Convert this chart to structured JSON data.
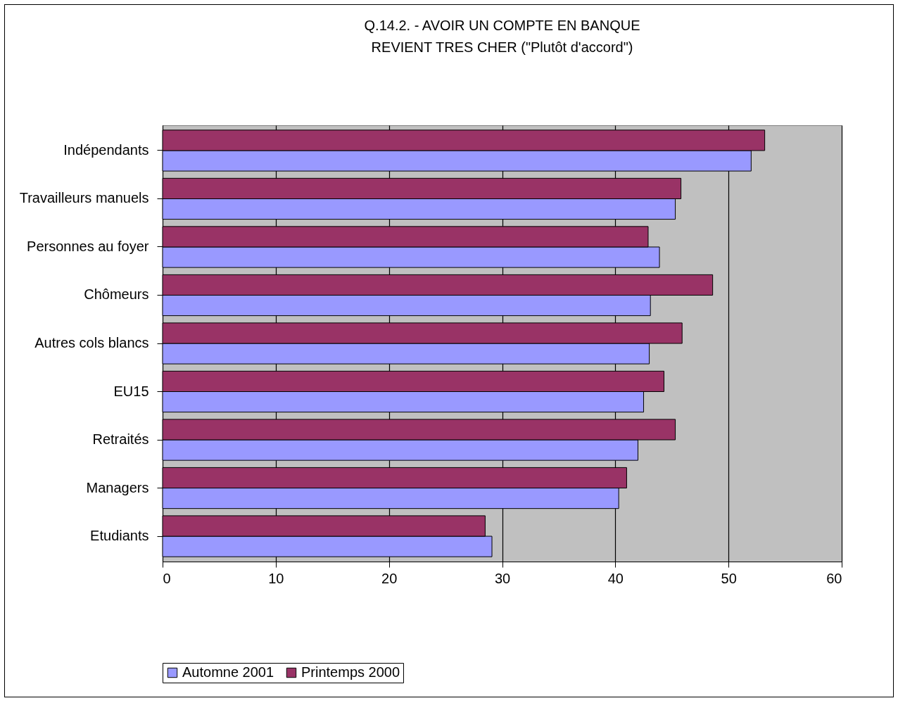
{
  "chart_data": {
    "type": "bar",
    "orientation": "horizontal",
    "title": [
      "Q.14.2. - AVOIR UN COMPTE EN BANQUE",
      "REVIENT TRES CHER (\"Plutôt d'accord\")"
    ],
    "categories": [
      "Indépendants",
      "Travailleurs manuels",
      "Personnes au foyer",
      "Chômeurs",
      "Autres cols blancs",
      "EU15",
      "Retraités",
      "Managers",
      "Etudiants"
    ],
    "series": [
      {
        "name": "Automne 2001",
        "color": "#9999ff",
        "values": [
          52.0,
          45.3,
          43.9,
          43.1,
          43.0,
          42.5,
          42.0,
          40.3,
          29.1
        ]
      },
      {
        "name": "Printemps 2000",
        "color": "#993366",
        "values": [
          53.2,
          45.8,
          42.9,
          48.6,
          45.9,
          44.3,
          45.3,
          41.0,
          28.5
        ]
      }
    ],
    "xlim": [
      0,
      60
    ],
    "xticks": [
      0,
      10,
      20,
      30,
      40,
      50,
      60
    ],
    "grid": "x",
    "legend": "bottom"
  }
}
